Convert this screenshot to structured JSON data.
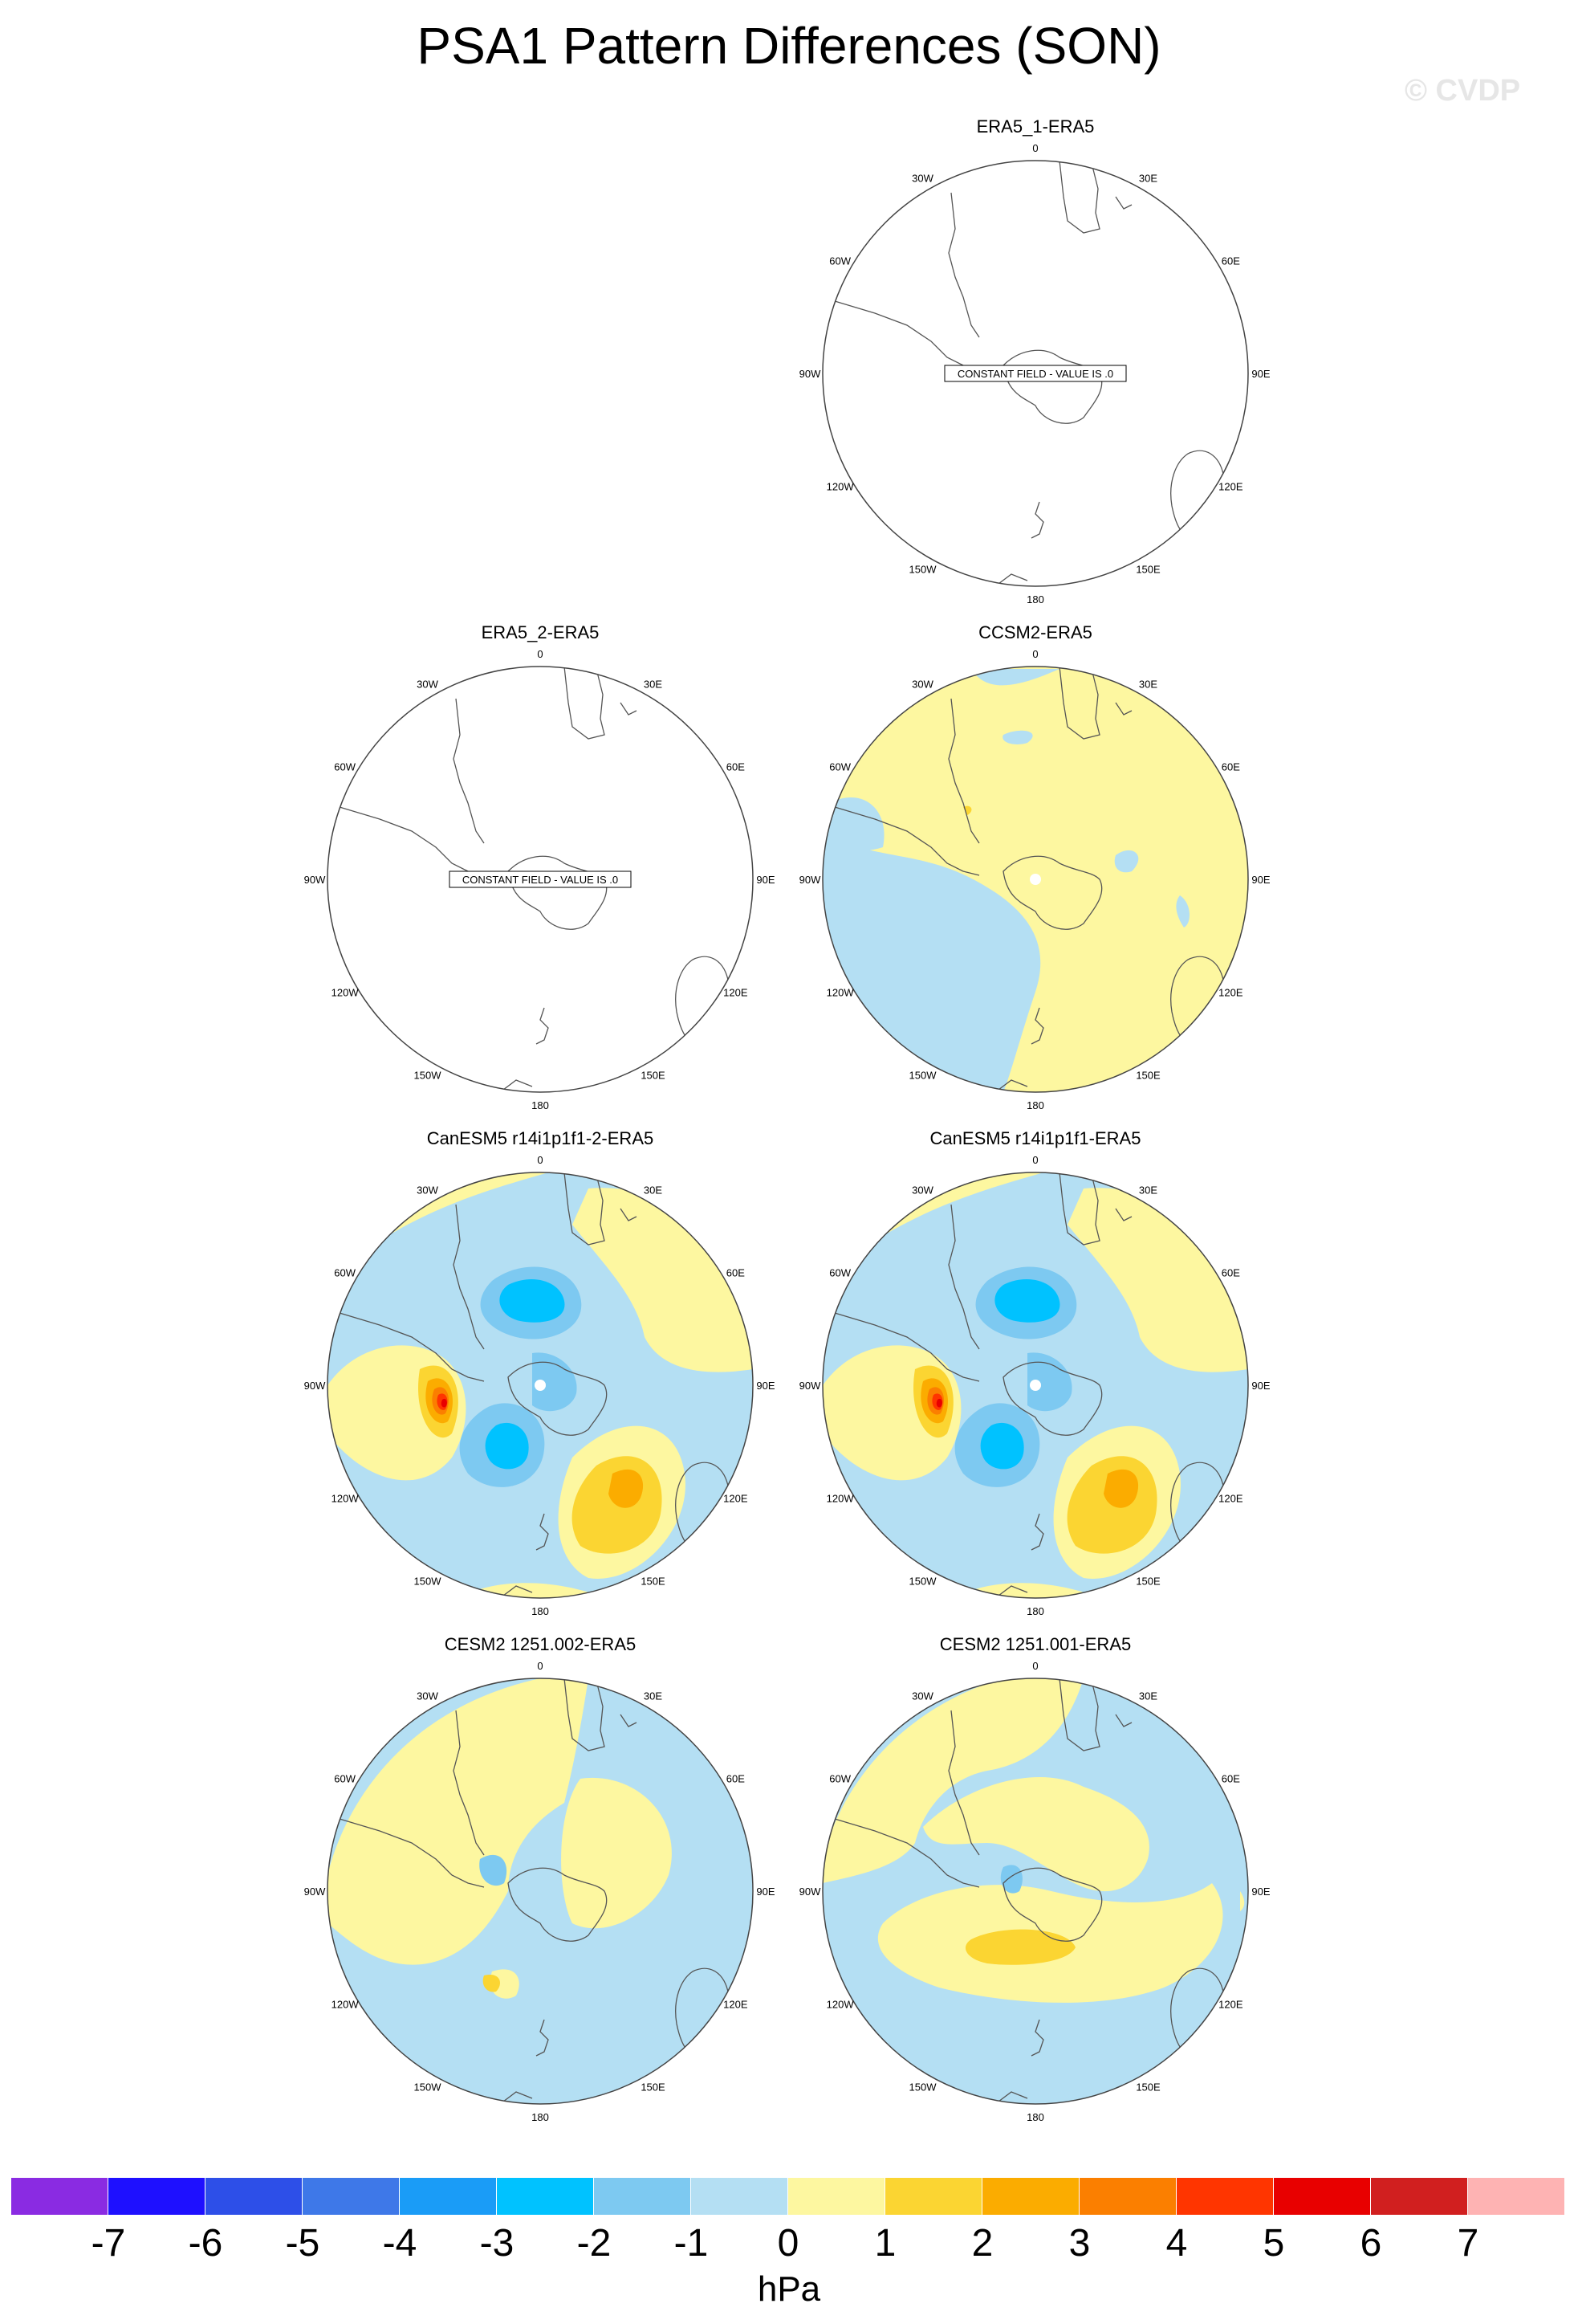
{
  "title": "PSA1 Pattern Differences (SON)",
  "watermark": "© CVDP",
  "panels": [
    {
      "title": "ERA5_1-ERA5",
      "constant_label": "CONSTANT FIELD - VALUE IS .0"
    },
    {
      "title": "ERA5_2-ERA5",
      "constant_label": "CONSTANT FIELD - VALUE IS .0"
    },
    {
      "title": "CCSM2-ERA5"
    },
    {
      "title": "CanESM5 r14i1p1f1-2-ERA5"
    },
    {
      "title": "CanESM5 r14i1p1f1-ERA5"
    },
    {
      "title": "CESM2 1251.002-ERA5"
    },
    {
      "title": "CESM2 1251.001-ERA5"
    }
  ],
  "longitude_labels": {
    "top": "0",
    "bottom": "180",
    "left": [
      "30W",
      "60W",
      "90W",
      "120W",
      "150W"
    ],
    "right": [
      "30E",
      "60E",
      "90E",
      "120E",
      "150E"
    ]
  },
  "colorbar": {
    "unit": "hPa",
    "ticks": [
      "-7",
      "-6",
      "-5",
      "-4",
      "-3",
      "-2",
      "-1",
      "0",
      "1",
      "2",
      "3",
      "4",
      "5",
      "6",
      "7"
    ],
    "colors": [
      "#8a2be2",
      "#1e10ff",
      "#2d4fe8",
      "#3e78e8",
      "#1a9cf7",
      "#00c2ff",
      "#7dc9f1",
      "#b4dff3",
      "#fdf7a0",
      "#fbd532",
      "#fbac00",
      "#fb7f00",
      "#ff3500",
      "#e80000",
      "#d11f1f",
      "#feb3b3"
    ]
  }
}
